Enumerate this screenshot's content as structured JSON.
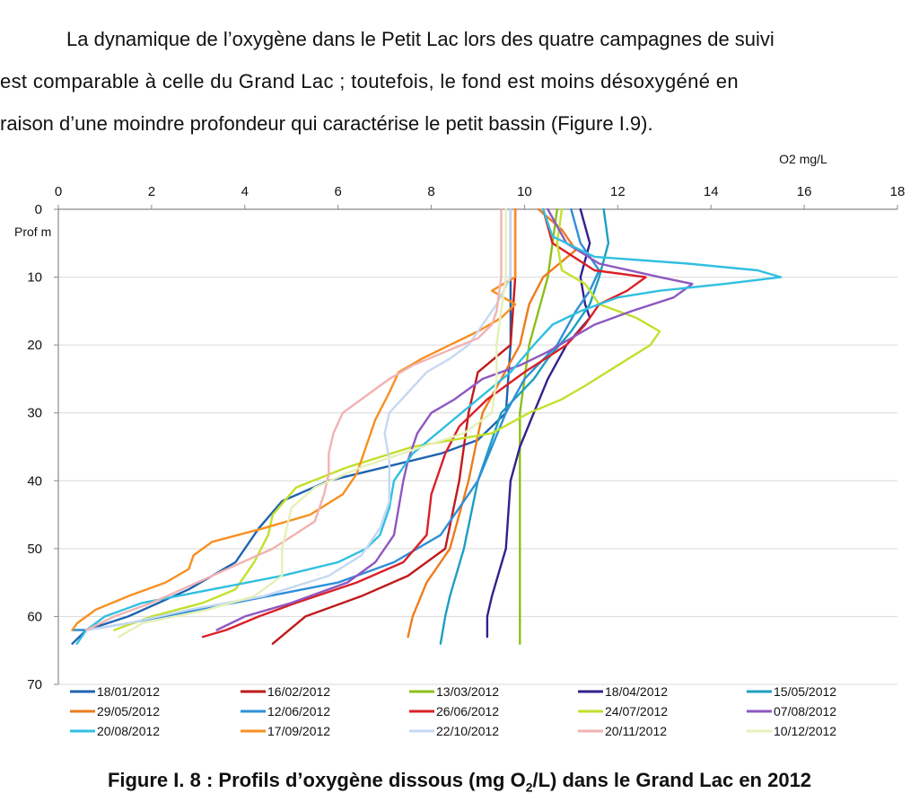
{
  "paragraph": {
    "line1": "La dynamique de l’oxygène dans le Petit Lac lors des quatre campagnes de suivi",
    "line2": "est comparable à celle du Grand Lac ; toutefois, le fond est moins désoxygéné en",
    "line3": "raison d’une moindre profondeur qui caractérise le petit bassin (Figure I.9)."
  },
  "caption": {
    "prefix": "Figure I. 8 : Profils d’oxygène dissous (mg O",
    "sub": "2",
    "suffix": "/L)  dans le Grand Lac en 2012"
  },
  "chart_data": {
    "type": "line",
    "title": "",
    "xlabel": "O2 mg/L",
    "ylabel": "Prof m",
    "xlim": [
      0,
      18
    ],
    "ylim": [
      0,
      70
    ],
    "x_ticks": [
      0,
      2,
      4,
      6,
      8,
      10,
      12,
      14,
      16,
      18
    ],
    "y_ticks": [
      0,
      10,
      20,
      30,
      40,
      50,
      60,
      70
    ],
    "x_axis_position": "top",
    "y_axis_inverted": true,
    "grid": true,
    "legend_position": "bottom",
    "series": [
      {
        "name": "18/01/2012",
        "color": "#1f63b0",
        "points": [
          [
            9.7,
            0
          ],
          [
            9.7,
            10
          ],
          [
            9.7,
            20
          ],
          [
            9.6,
            30
          ],
          [
            9.0,
            34
          ],
          [
            8.2,
            36
          ],
          [
            7.0,
            38
          ],
          [
            5.8,
            40
          ],
          [
            4.8,
            43
          ],
          [
            4.3,
            47
          ],
          [
            3.8,
            52
          ],
          [
            2.8,
            56
          ],
          [
            1.5,
            60
          ],
          [
            0.6,
            62
          ],
          [
            0.3,
            64
          ]
        ]
      },
      {
        "name": "16/02/2012",
        "color": "#c01a1a",
        "points": [
          [
            9.8,
            0
          ],
          [
            9.8,
            10
          ],
          [
            9.7,
            20
          ],
          [
            9.0,
            24
          ],
          [
            8.8,
            30
          ],
          [
            8.6,
            40
          ],
          [
            8.3,
            50
          ],
          [
            7.5,
            54
          ],
          [
            6.5,
            57
          ],
          [
            5.3,
            60
          ],
          [
            4.6,
            64
          ]
        ]
      },
      {
        "name": "13/03/2012",
        "color": "#8dbf1a",
        "points": [
          [
            10.7,
            0
          ],
          [
            10.6,
            5
          ],
          [
            10.5,
            10
          ],
          [
            10.3,
            15
          ],
          [
            10.1,
            20
          ],
          [
            9.9,
            30
          ],
          [
            9.9,
            40
          ],
          [
            9.9,
            50
          ],
          [
            9.9,
            60
          ],
          [
            9.9,
            64
          ]
        ]
      },
      {
        "name": "18/04/2012",
        "color": "#33208c",
        "points": [
          [
            11.2,
            0
          ],
          [
            11.4,
            5
          ],
          [
            11.2,
            10
          ],
          [
            11.3,
            14
          ],
          [
            11.4,
            16
          ],
          [
            10.9,
            20
          ],
          [
            10.5,
            25
          ],
          [
            10.2,
            30
          ],
          [
            9.9,
            35
          ],
          [
            9.7,
            40
          ],
          [
            9.6,
            50
          ],
          [
            9.3,
            57
          ],
          [
            9.2,
            60
          ],
          [
            9.2,
            63
          ]
        ]
      },
      {
        "name": "15/05/2012",
        "color": "#1d9fc0",
        "points": [
          [
            11.7,
            0
          ],
          [
            11.8,
            5
          ],
          [
            11.6,
            10
          ],
          [
            11.4,
            14
          ],
          [
            11.0,
            18
          ],
          [
            10.5,
            22
          ],
          [
            10.2,
            25
          ],
          [
            9.5,
            30
          ],
          [
            9.0,
            40
          ],
          [
            8.7,
            50
          ],
          [
            8.4,
            57
          ],
          [
            8.3,
            60
          ],
          [
            8.2,
            64
          ]
        ]
      },
      {
        "name": "29/05/2012",
        "color": "#ee7c1c",
        "points": [
          [
            10.3,
            0
          ],
          [
            10.8,
            3
          ],
          [
            11.1,
            6
          ],
          [
            10.4,
            10
          ],
          [
            10.1,
            14
          ],
          [
            9.9,
            20
          ],
          [
            9.5,
            25
          ],
          [
            9.1,
            30
          ],
          [
            8.8,
            40
          ],
          [
            8.4,
            50
          ],
          [
            7.9,
            55
          ],
          [
            7.6,
            60
          ],
          [
            7.5,
            63
          ]
        ]
      },
      {
        "name": "12/06/2012",
        "color": "#2f8fd8",
        "points": [
          [
            11.0,
            0
          ],
          [
            11.2,
            5
          ],
          [
            11.6,
            9
          ],
          [
            11.4,
            12
          ],
          [
            11.1,
            15
          ],
          [
            10.7,
            20
          ],
          [
            10.0,
            25
          ],
          [
            9.6,
            30
          ],
          [
            9.3,
            35
          ],
          [
            9.0,
            40
          ],
          [
            8.2,
            48
          ],
          [
            7.2,
            52
          ],
          [
            6.0,
            55
          ],
          [
            4.5,
            57
          ],
          [
            3.0,
            59
          ],
          [
            1.5,
            61
          ],
          [
            0.6,
            62
          ],
          [
            0.3,
            62
          ]
        ]
      },
      {
        "name": "26/06/2012",
        "color": "#da2028",
        "points": [
          [
            10.4,
            0
          ],
          [
            10.6,
            5
          ],
          [
            11.5,
            9
          ],
          [
            12.6,
            10
          ],
          [
            12.2,
            12
          ],
          [
            11.6,
            14
          ],
          [
            11.3,
            17
          ],
          [
            10.9,
            20
          ],
          [
            10.0,
            24
          ],
          [
            9.2,
            28
          ],
          [
            8.6,
            32
          ],
          [
            8.3,
            36
          ],
          [
            8.0,
            42
          ],
          [
            7.9,
            48
          ],
          [
            7.4,
            52
          ],
          [
            6.4,
            55
          ],
          [
            5.1,
            58
          ],
          [
            4.3,
            60
          ],
          [
            3.6,
            62
          ],
          [
            3.1,
            63
          ]
        ]
      },
      {
        "name": "24/07/2012",
        "color": "#c2e02c",
        "points": [
          [
            10.8,
            0
          ],
          [
            10.7,
            5
          ],
          [
            10.8,
            9
          ],
          [
            11.3,
            11
          ],
          [
            11.6,
            14
          ],
          [
            12.4,
            16
          ],
          [
            12.9,
            18
          ],
          [
            12.7,
            20
          ],
          [
            12.0,
            23
          ],
          [
            11.3,
            26
          ],
          [
            10.8,
            28
          ],
          [
            10.1,
            30
          ],
          [
            9.3,
            33
          ],
          [
            7.6,
            35
          ],
          [
            6.2,
            38
          ],
          [
            5.1,
            41
          ],
          [
            4.6,
            45
          ],
          [
            4.5,
            48
          ],
          [
            4.2,
            52
          ],
          [
            3.8,
            56
          ],
          [
            3.1,
            58
          ],
          [
            2.0,
            60
          ],
          [
            1.2,
            62
          ]
        ]
      },
      {
        "name": "07/08/2012",
        "color": "#8e58c0",
        "points": [
          [
            10.5,
            0
          ],
          [
            10.9,
            5
          ],
          [
            11.6,
            8
          ],
          [
            12.9,
            10
          ],
          [
            13.6,
            11
          ],
          [
            13.2,
            13
          ],
          [
            12.3,
            15
          ],
          [
            11.5,
            17
          ],
          [
            11.0,
            19
          ],
          [
            10.5,
            21
          ],
          [
            9.9,
            23
          ],
          [
            9.1,
            25
          ],
          [
            8.5,
            28
          ],
          [
            8.0,
            30
          ],
          [
            7.7,
            33
          ],
          [
            7.5,
            37
          ],
          [
            7.4,
            40
          ],
          [
            7.3,
            44
          ],
          [
            7.2,
            48
          ],
          [
            6.8,
            52
          ],
          [
            6.2,
            55
          ],
          [
            5.0,
            58
          ],
          [
            4.0,
            60
          ],
          [
            3.4,
            62
          ]
        ]
      },
      {
        "name": "20/08/2012",
        "color": "#31bfe0",
        "points": [
          [
            10.4,
            0
          ],
          [
            10.6,
            4
          ],
          [
            11.5,
            7
          ],
          [
            13.5,
            8
          ],
          [
            15.0,
            9
          ],
          [
            15.5,
            10
          ],
          [
            14.3,
            11
          ],
          [
            12.9,
            12
          ],
          [
            12.0,
            13
          ],
          [
            11.2,
            15
          ],
          [
            10.6,
            17
          ],
          [
            10.2,
            20
          ],
          [
            9.7,
            24
          ],
          [
            9.0,
            28
          ],
          [
            8.3,
            32
          ],
          [
            7.6,
            36
          ],
          [
            7.2,
            40
          ],
          [
            7.1,
            44
          ],
          [
            6.9,
            48
          ],
          [
            6.6,
            50
          ],
          [
            6.0,
            52
          ],
          [
            4.8,
            54
          ],
          [
            3.3,
            56
          ],
          [
            1.8,
            58
          ],
          [
            1.0,
            60
          ],
          [
            0.6,
            62
          ],
          [
            0.4,
            64
          ]
        ]
      },
      {
        "name": "17/09/2012",
        "color": "#f79020",
        "points": [
          [
            9.8,
            0
          ],
          [
            9.8,
            5
          ],
          [
            9.8,
            10
          ],
          [
            9.3,
            12
          ],
          [
            9.8,
            14
          ],
          [
            9.5,
            16
          ],
          [
            9.0,
            18
          ],
          [
            8.4,
            20
          ],
          [
            7.8,
            22
          ],
          [
            7.3,
            24
          ],
          [
            7.1,
            27
          ],
          [
            6.8,
            31
          ],
          [
            6.6,
            35
          ],
          [
            6.4,
            39
          ],
          [
            6.1,
            42
          ],
          [
            5.4,
            45
          ],
          [
            4.4,
            47
          ],
          [
            3.3,
            49
          ],
          [
            2.9,
            51
          ],
          [
            2.8,
            53
          ],
          [
            2.3,
            55
          ],
          [
            1.5,
            57
          ],
          [
            0.8,
            59
          ],
          [
            0.4,
            61
          ],
          [
            0.3,
            62
          ]
        ]
      },
      {
        "name": "22/10/2012",
        "color": "#c6d8f2",
        "points": [
          [
            9.7,
            0
          ],
          [
            9.7,
            10
          ],
          [
            9.4,
            14
          ],
          [
            9.1,
            17
          ],
          [
            8.8,
            20
          ],
          [
            8.4,
            22
          ],
          [
            7.9,
            24
          ],
          [
            7.5,
            27
          ],
          [
            7.1,
            30
          ],
          [
            7.0,
            33
          ],
          [
            7.1,
            37
          ],
          [
            7.1,
            40
          ],
          [
            7.1,
            43
          ],
          [
            6.9,
            47
          ],
          [
            6.5,
            51
          ],
          [
            5.8,
            54
          ],
          [
            4.4,
            57
          ],
          [
            2.8,
            59
          ],
          [
            1.5,
            61
          ],
          [
            0.6,
            62
          ]
        ]
      },
      {
        "name": "20/11/2012",
        "color": "#f2b2b2",
        "points": [
          [
            9.5,
            0
          ],
          [
            9.5,
            10
          ],
          [
            9.4,
            15
          ],
          [
            9.3,
            17
          ],
          [
            9.0,
            19
          ],
          [
            8.3,
            21
          ],
          [
            7.6,
            23
          ],
          [
            7.1,
            25
          ],
          [
            6.5,
            28
          ],
          [
            6.1,
            30
          ],
          [
            5.9,
            33
          ],
          [
            5.8,
            36
          ],
          [
            5.8,
            39
          ],
          [
            5.7,
            42
          ],
          [
            5.5,
            46
          ],
          [
            4.6,
            50
          ],
          [
            3.3,
            54
          ],
          [
            2.0,
            58
          ],
          [
            1.2,
            60
          ],
          [
            0.6,
            62
          ]
        ]
      },
      {
        "name": "10/12/2012",
        "color": "#e6f0b8",
        "points": [
          [
            9.6,
            0
          ],
          [
            9.6,
            10
          ],
          [
            9.5,
            15
          ],
          [
            9.4,
            20
          ],
          [
            9.4,
            25
          ],
          [
            9.3,
            30
          ],
          [
            8.7,
            33
          ],
          [
            7.8,
            35
          ],
          [
            6.5,
            38
          ],
          [
            5.5,
            41
          ],
          [
            5.0,
            44
          ],
          [
            4.9,
            47
          ],
          [
            4.8,
            50
          ],
          [
            4.8,
            54
          ],
          [
            4.2,
            57
          ],
          [
            3.2,
            59
          ],
          [
            1.8,
            61
          ],
          [
            1.3,
            63
          ]
        ]
      }
    ]
  }
}
